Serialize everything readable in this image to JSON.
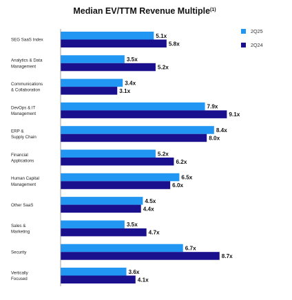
{
  "chart_data": {
    "type": "bar",
    "orientation": "horizontal",
    "title": "Median EV/TTM Revenue Multiple",
    "title_superscript": "(1)",
    "categories": [
      [
        "SEG SaaS Index"
      ],
      [
        "Analytics & Data",
        "Management"
      ],
      [
        "Communications",
        "& Collaboration"
      ],
      [
        "DevOps & IT",
        "Management"
      ],
      [
        "ERP &",
        "Supply Chain"
      ],
      [
        "Financial",
        "Applications"
      ],
      [
        "Human Capital",
        "Management"
      ],
      [
        "Other SaaS"
      ],
      [
        "Sales &",
        "Marketing"
      ],
      [
        "Security"
      ],
      [
        "Vertically",
        "Focused"
      ]
    ],
    "series": [
      {
        "name": "2Q25",
        "color": "#2196f3",
        "values": [
          5.1,
          3.5,
          3.4,
          7.9,
          8.4,
          5.2,
          6.5,
          4.5,
          3.5,
          6.7,
          3.6
        ]
      },
      {
        "name": "2Q24",
        "color": "#1a0f8c",
        "values": [
          5.8,
          5.2,
          3.1,
          9.1,
          8.0,
          6.2,
          6.0,
          4.4,
          4.7,
          8.7,
          4.1
        ]
      }
    ],
    "value_suffix": "x",
    "xlim": [
      0,
      9.5
    ],
    "grid": false,
    "legend": "top-right"
  }
}
